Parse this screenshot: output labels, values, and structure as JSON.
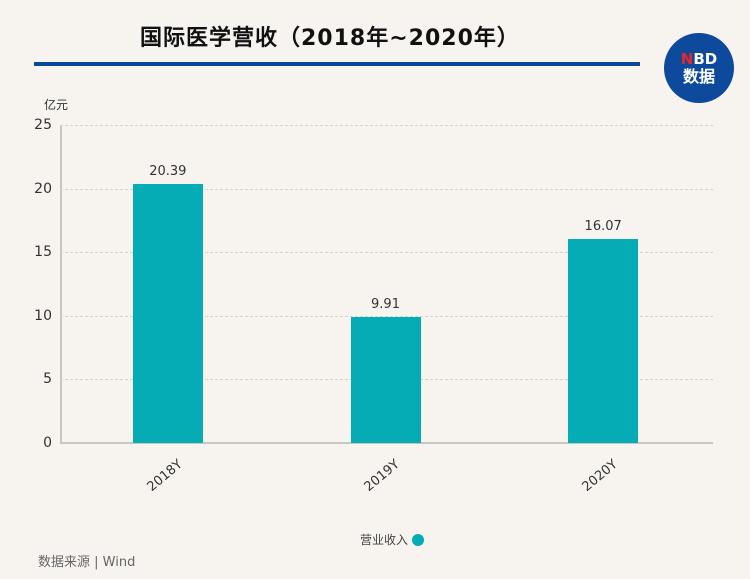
{
  "header": {
    "title": "国际医学营收（2018年~2020年）",
    "logo": {
      "line1_accent": "N",
      "line1_rest": "BD",
      "line2": "数据"
    }
  },
  "colors": {
    "bar": "#05abb5",
    "rule": "#0a4a9a",
    "logo_bg": "#0d4a9b",
    "logo_accent": "#e8262d"
  },
  "footer": {
    "source": "数据来源 | Wind"
  },
  "chart_data": {
    "type": "bar",
    "title": "国际医学营收（2018年~2020年）",
    "categories": [
      "2018Y",
      "2019Y",
      "2020Y"
    ],
    "series": [
      {
        "name": "营业收入",
        "values": [
          20.39,
          9.91,
          16.07
        ],
        "color": "#05abb5"
      }
    ],
    "value_labels": [
      "20.39",
      "9.91",
      "16.07"
    ],
    "xlabel": "",
    "ylabel": "亿元",
    "ylim": [
      0,
      25
    ],
    "yticks": [
      "0",
      "5",
      "10",
      "15",
      "20",
      "25"
    ],
    "grid": true,
    "legend_position": "bottom-center"
  }
}
